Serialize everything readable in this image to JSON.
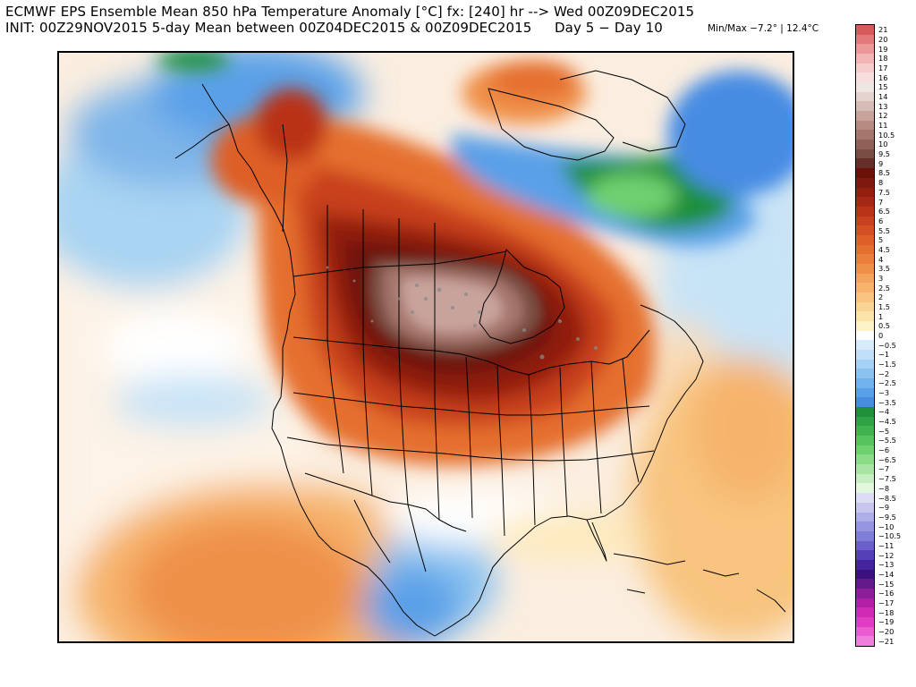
{
  "header": {
    "line1": "ECMWF EPS Ensemble Mean 850 hPa Temperature Anomaly [°C] fx: [240] hr --> Wed 00Z09DEC2015",
    "line2_init": "INIT: 00Z29NOV2015 5-day Mean between 00Z04DEC2015 & 00Z09DEC2015",
    "line2_days": "Day 5 − Day 10",
    "minmax": "Min/Max −7.2° | 12.4°C"
  },
  "map": {
    "region": "North America",
    "field": "850 hPa temperature anomaly"
  },
  "colorbar": {
    "labels": [
      "21",
      "20",
      "19",
      "18",
      "17",
      "16",
      "15",
      "14",
      "13",
      "12",
      "11",
      "10.5",
      "10",
      "9.5",
      "9",
      "8.5",
      "8",
      "7.5",
      "7",
      "6.5",
      "6",
      "5.5",
      "5",
      "4.5",
      "4",
      "3.5",
      "3",
      "2.5",
      "2",
      "1.5",
      "1",
      "0.5",
      "0",
      "−0.5",
      "−1",
      "−1.5",
      "−2",
      "−2.5",
      "−3",
      "−3.5",
      "−4",
      "−4.5",
      "−5",
      "−5.5",
      "−6",
      "−6.5",
      "−7",
      "−7.5",
      "−8",
      "−8.5",
      "−9",
      "−9.5",
      "−10",
      "−10.5",
      "−11",
      "−12",
      "−13",
      "−14",
      "−15",
      "−16",
      "−17",
      "−18",
      "−19",
      "−20",
      "−21"
    ],
    "colors": [
      "#d65a5a",
      "#e27a7a",
      "#ec9898",
      "#f3b5b5",
      "#f7cccc",
      "#f8dede",
      "#efe6e4",
      "#e5d3cf",
      "#d7bcb6",
      "#c8a39b",
      "#b78b82",
      "#a5766c",
      "#8f6157",
      "#7a4d43",
      "#652f28",
      "#6a1208",
      "#7e1a0d",
      "#921f10",
      "#a62814",
      "#b93318",
      "#c8401e",
      "#d44f22",
      "#de5f27",
      "#e56f2f",
      "#ea7f39",
      "#ef9048",
      "#f3a35b",
      "#f6b36c",
      "#f8c47f",
      "#fad494",
      "#fbe3a9",
      "#fdf1c6",
      "#ffffff",
      "#d6ecfb",
      "#bfe0f8",
      "#a5d2f4",
      "#8bc3f0",
      "#70b2ec",
      "#5aa0e8",
      "#468ce3",
      "#1f8f3a",
      "#2ea244",
      "#40b34f",
      "#56c35d",
      "#6ed06f",
      "#8bdb87",
      "#a8e5a3",
      "#c6efc1",
      "#e3f7df",
      "#dcdcf5",
      "#c6c6ef",
      "#aeaee8",
      "#9696e0",
      "#7f7fd8",
      "#6a5fcb",
      "#5640b8",
      "#47249f",
      "#3d1080",
      "#621a8a",
      "#8a1f97",
      "#b120a7",
      "#cf2bb5",
      "#e03cc2",
      "#eb5cd0",
      "#f07fdc"
    ]
  }
}
